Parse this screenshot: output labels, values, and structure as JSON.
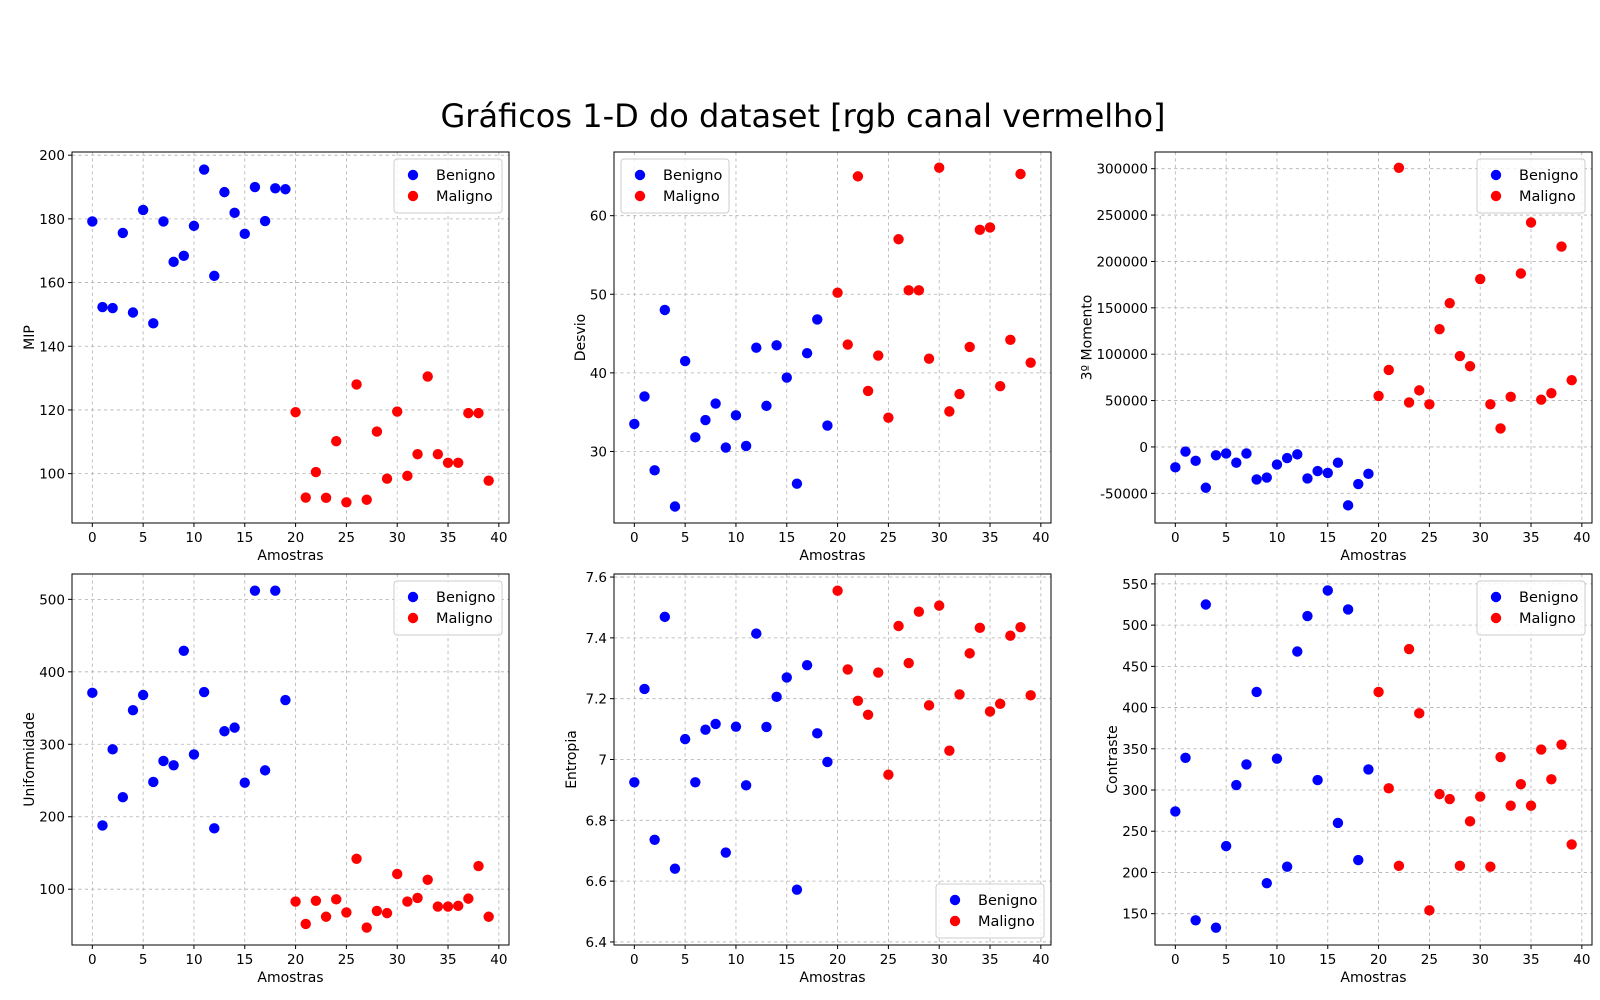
{
  "title": "Gráficos 1-D do dataset [rgb canal vermelho]",
  "colors": {
    "benign": "#0000ff",
    "malign": "#ff0000"
  },
  "chart_data": [
    {
      "type": "scatter",
      "xlabel": "Amostras",
      "ylabel": "MIP",
      "xlim": [
        -2,
        41
      ],
      "ylim": [
        84.5,
        201
      ],
      "xticks": [
        0,
        5,
        10,
        15,
        20,
        25,
        30,
        35,
        40
      ],
      "yticks": [
        100,
        120,
        140,
        160,
        180,
        200
      ],
      "grid": true,
      "legend": "top-right",
      "series": [
        {
          "name": "Benigno",
          "x": [
            0,
            1,
            2,
            3,
            4,
            5,
            6,
            7,
            8,
            9,
            10,
            11,
            12,
            13,
            14,
            15,
            16,
            17,
            18,
            19
          ],
          "y": [
            179.2,
            152.3,
            152.0,
            175.6,
            150.6,
            182.8,
            147.2,
            179.2,
            166.5,
            168.4,
            177.8,
            195.5,
            162.1,
            188.4,
            181.9,
            175.3,
            190.0,
            179.3,
            189.6,
            189.3
          ]
        },
        {
          "name": "Maligno",
          "x": [
            20,
            21,
            22,
            23,
            24,
            25,
            26,
            27,
            28,
            29,
            30,
            31,
            32,
            33,
            34,
            35,
            36,
            37,
            38,
            39
          ],
          "y": [
            119.3,
            92.5,
            100.5,
            92.4,
            110.2,
            91.0,
            128.0,
            91.8,
            113.2,
            98.4,
            119.5,
            99.3,
            106.1,
            130.5,
            106.1,
            103.4,
            103.4,
            119.0,
            119.0,
            97.8
          ]
        }
      ]
    },
    {
      "type": "scatter",
      "xlabel": "Amostras",
      "ylabel": "Desvio",
      "xlim": [
        -2,
        41
      ],
      "ylim": [
        20.9,
        68.1
      ],
      "xticks": [
        0,
        5,
        10,
        15,
        20,
        25,
        30,
        35,
        40
      ],
      "yticks": [
        30,
        40,
        50,
        60
      ],
      "grid": true,
      "legend": "top-left",
      "series": [
        {
          "name": "Benigno",
          "x": [
            0,
            1,
            2,
            3,
            4,
            5,
            6,
            7,
            8,
            9,
            10,
            11,
            12,
            13,
            14,
            15,
            16,
            17,
            18,
            19
          ],
          "y": [
            33.5,
            37.0,
            27.6,
            48.0,
            23.0,
            41.5,
            31.8,
            34.0,
            36.1,
            30.5,
            34.6,
            30.7,
            43.2,
            35.8,
            43.5,
            39.4,
            25.9,
            42.5,
            46.8,
            33.3
          ]
        },
        {
          "name": "Maligno",
          "x": [
            20,
            21,
            22,
            23,
            24,
            25,
            26,
            27,
            28,
            29,
            30,
            31,
            32,
            33,
            34,
            35,
            36,
            37,
            38,
            39
          ],
          "y": [
            50.2,
            43.6,
            65.0,
            37.7,
            42.2,
            34.3,
            57.0,
            50.5,
            50.5,
            41.8,
            66.1,
            35.1,
            37.3,
            43.3,
            58.2,
            58.5,
            38.3,
            44.2,
            65.3,
            41.3
          ]
        }
      ]
    },
    {
      "type": "scatter",
      "xlabel": "Amostras",
      "ylabel": "3º Momento",
      "xlim": [
        -2,
        41
      ],
      "ylim": [
        -82000,
        318000
      ],
      "xticks": [
        0,
        5,
        10,
        15,
        20,
        25,
        30,
        35,
        40
      ],
      "yticks": [
        -50000,
        0,
        50000,
        100000,
        150000,
        200000,
        250000,
        300000
      ],
      "grid": true,
      "legend": "top-right",
      "series": [
        {
          "name": "Benigno",
          "x": [
            0,
            1,
            2,
            3,
            4,
            5,
            6,
            7,
            8,
            9,
            10,
            11,
            12,
            13,
            14,
            15,
            16,
            17,
            18,
            19
          ],
          "y": [
            -22000,
            -5000,
            -15000,
            -44000,
            -9000,
            -7000,
            -17000,
            -7000,
            -35000,
            -33000,
            -19000,
            -12000,
            -8000,
            -34000,
            -26000,
            -28000,
            -17000,
            -63000,
            -40000,
            -29000
          ]
        },
        {
          "name": "Maligno",
          "x": [
            20,
            21,
            22,
            23,
            24,
            25,
            26,
            27,
            28,
            29,
            30,
            31,
            32,
            33,
            34,
            35,
            36,
            37,
            38,
            39
          ],
          "y": [
            55000,
            83000,
            301000,
            48000,
            61000,
            46000,
            127000,
            155000,
            98000,
            87000,
            181000,
            46000,
            20000,
            54000,
            187000,
            242000,
            51000,
            58000,
            216000,
            72000
          ]
        }
      ]
    },
    {
      "type": "scatter",
      "xlabel": "Amostras",
      "ylabel": "Uniformidade",
      "xlim": [
        -2,
        41
      ],
      "ylim": [
        23,
        535
      ],
      "xticks": [
        0,
        5,
        10,
        15,
        20,
        25,
        30,
        35,
        40
      ],
      "yticks": [
        100,
        200,
        300,
        400,
        500
      ],
      "grid": true,
      "legend": "top-right",
      "series": [
        {
          "name": "Benigno",
          "x": [
            0,
            1,
            2,
            3,
            4,
            5,
            6,
            7,
            8,
            9,
            10,
            11,
            12,
            13,
            14,
            15,
            16,
            17,
            18,
            19
          ],
          "y": [
            371,
            188,
            293,
            227,
            347,
            368,
            248,
            277,
            271,
            429,
            286,
            372,
            184,
            318,
            323,
            247,
            512,
            264,
            512,
            361
          ]
        },
        {
          "name": "Maligno",
          "x": [
            20,
            21,
            22,
            23,
            24,
            25,
            26,
            27,
            28,
            29,
            30,
            31,
            32,
            33,
            34,
            35,
            36,
            37,
            38,
            39
          ],
          "y": [
            83,
            52,
            84,
            62,
            86,
            68,
            142,
            47,
            70,
            67,
            121,
            83,
            88,
            113,
            76,
            76,
            77,
            87,
            132,
            62
          ]
        }
      ]
    },
    {
      "type": "scatter",
      "xlabel": "Amostras",
      "ylabel": "Entropia",
      "xlim": [
        -2,
        41
      ],
      "ylim": [
        6.39,
        7.61
      ],
      "xticks": [
        0,
        5,
        10,
        15,
        20,
        25,
        30,
        35,
        40
      ],
      "yticks": [
        6.4,
        6.6,
        6.8,
        7.0,
        7.2,
        7.4,
        7.6
      ],
      "grid": true,
      "legend": "bottom-right",
      "series": [
        {
          "name": "Benigno",
          "x": [
            0,
            1,
            2,
            3,
            4,
            5,
            6,
            7,
            8,
            9,
            10,
            11,
            12,
            13,
            14,
            15,
            16,
            17,
            18,
            19
          ],
          "y": [
            6.925,
            7.232,
            6.736,
            7.469,
            6.641,
            7.067,
            6.925,
            7.098,
            7.117,
            6.694,
            7.108,
            6.915,
            7.414,
            7.107,
            7.206,
            7.27,
            6.572,
            7.31,
            7.086,
            6.992
          ]
        },
        {
          "name": "Maligno",
          "x": [
            20,
            21,
            22,
            23,
            24,
            25,
            26,
            27,
            28,
            29,
            30,
            31,
            32,
            33,
            34,
            35,
            36,
            37,
            38,
            39
          ],
          "y": [
            7.555,
            7.296,
            7.193,
            7.147,
            7.286,
            6.95,
            7.439,
            7.317,
            7.486,
            7.178,
            7.506,
            7.029,
            7.214,
            7.349,
            7.433,
            7.158,
            7.183,
            7.407,
            7.435,
            7.211
          ]
        }
      ]
    },
    {
      "type": "scatter",
      "xlabel": "Amostras",
      "ylabel": "Contraste",
      "xlim": [
        -2,
        41
      ],
      "ylim": [
        112,
        562
      ],
      "xticks": [
        0,
        5,
        10,
        15,
        20,
        25,
        30,
        35,
        40
      ],
      "yticks": [
        150,
        200,
        250,
        300,
        350,
        400,
        450,
        500,
        550
      ],
      "grid": true,
      "legend": "top-right",
      "series": [
        {
          "name": "Benigno",
          "x": [
            0,
            1,
            2,
            3,
            4,
            5,
            6,
            7,
            8,
            9,
            10,
            11,
            12,
            13,
            14,
            15,
            16,
            17,
            18,
            19
          ],
          "y": [
            274,
            339,
            142,
            525,
            133,
            232,
            306,
            331,
            419,
            187,
            338,
            207,
            468,
            511,
            312,
            542,
            260,
            519,
            215,
            325
          ]
        },
        {
          "name": "Maligno",
          "x": [
            20,
            21,
            22,
            23,
            24,
            25,
            26,
            27,
            28,
            29,
            30,
            31,
            32,
            33,
            34,
            35,
            36,
            37,
            38,
            39
          ],
          "y": [
            419,
            302,
            208,
            471,
            393,
            154,
            295,
            289,
            208,
            262,
            292,
            207,
            340,
            281,
            307,
            281,
            349,
            313,
            355,
            234
          ]
        }
      ]
    }
  ]
}
